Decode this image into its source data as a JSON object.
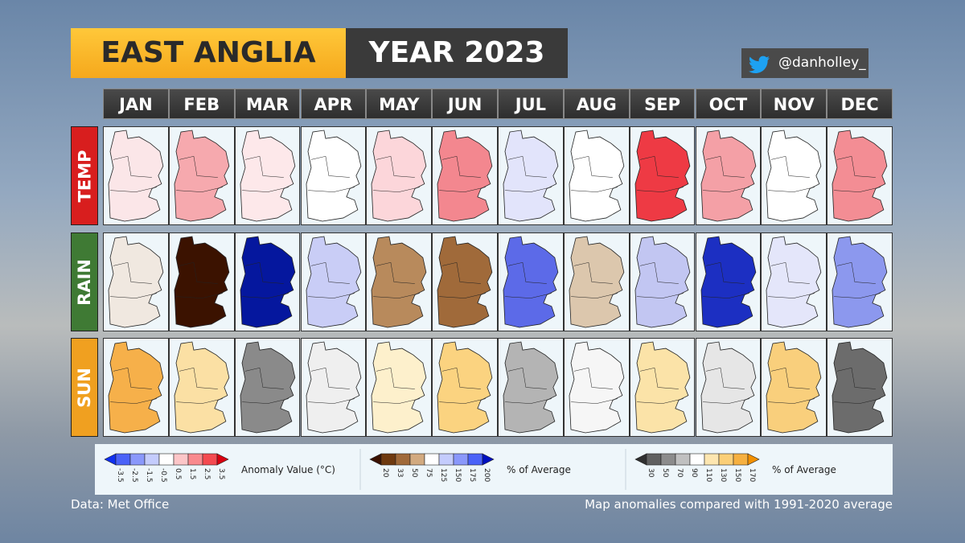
{
  "header": {
    "region": "EAST ANGLIA",
    "year": "YEAR 2023",
    "handle": "@danholley_"
  },
  "months": [
    "JAN",
    "FEB",
    "MAR",
    "APR",
    "MAY",
    "JUN",
    "JUL",
    "AUG",
    "SEP",
    "OCT",
    "NOV",
    "DEC"
  ],
  "rows": [
    {
      "label": "TEMP",
      "label_color": "#d81e1e",
      "colors": [
        "#fbe6e8",
        "#f6a9ae",
        "#fde8ea",
        "#ffffff",
        "#fcd6da",
        "#f3878f",
        "#e2e4fb",
        "#ffffff",
        "#ee3a44",
        "#f4a0a6",
        "#ffffff",
        "#f38d94"
      ]
    },
    {
      "label": "RAIN",
      "label_color": "#3f7a34",
      "colors": [
        "#f0e8e0",
        "#3b1200",
        "#05179e",
        "#c9cdf6",
        "#b88a5c",
        "#a06a3a",
        "#5c6ae8",
        "#dcc7ad",
        "#c2c6f2",
        "#1c2fc2",
        "#e4e6fa",
        "#8c98ee"
      ]
    },
    {
      "label": "SUN",
      "label_color": "#f0a020",
      "colors": [
        "#f6b04a",
        "#fbe0a4",
        "#8a8a8a",
        "#efefef",
        "#fdf0cc",
        "#fbd380",
        "#b4b4b4",
        "#f6f6f6",
        "#fbe3a8",
        "#e6e6e6",
        "#f9cf7c",
        "#6c6c6c"
      ]
    }
  ],
  "legends": [
    {
      "label": "Anomaly Value (°C)",
      "ticks": [
        -3.5,
        -2.5,
        -1.5,
        -0.5,
        0.5,
        1.5,
        2.5,
        3.5
      ],
      "colors": [
        "#1030f0",
        "#4a62f8",
        "#8a98fb",
        "#c4ccfd",
        "#ffffff",
        "#fdc6c8",
        "#f98a8e",
        "#f44a50",
        "#d80010"
      ]
    },
    {
      "label": "% of Average",
      "ticks": [
        20,
        33,
        50,
        75,
        125,
        150,
        175,
        200
      ],
      "colors": [
        "#3b1200",
        "#6e3a10",
        "#a06a3a",
        "#d2aa80",
        "#ffffff",
        "#c4ccfd",
        "#8a98fb",
        "#4a62f8",
        "#0010c0"
      ]
    },
    {
      "label": "% of Average",
      "ticks": [
        30,
        50,
        70,
        90,
        110,
        130,
        150,
        170
      ],
      "colors": [
        "#303030",
        "#606060",
        "#8c8c8c",
        "#c0c0c0",
        "#ffffff",
        "#fde6b0",
        "#fbcf78",
        "#f6b040",
        "#f29000"
      ]
    }
  ],
  "footer": {
    "source": "Data: Met Office",
    "note": "Map anomalies compared with 1991-2020 average"
  }
}
